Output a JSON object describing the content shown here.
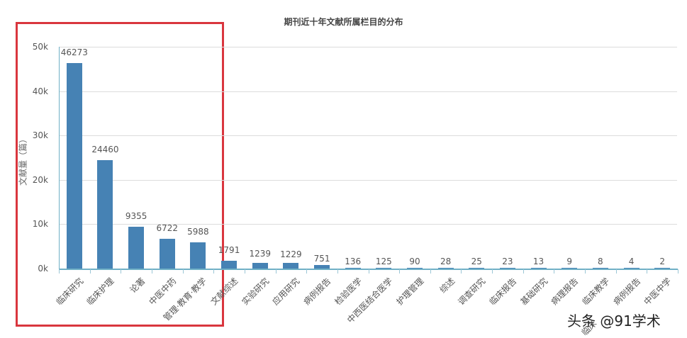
{
  "chart_data": {
    "type": "bar",
    "title": "期刊近十年文献所属栏目的分布",
    "xlabel": "",
    "ylabel": "文献量（篇）",
    "ylim": [
      0,
      50000
    ],
    "yticks": [
      "0k",
      "10k",
      "20k",
      "30k",
      "40k",
      "50k"
    ],
    "grid": true,
    "legend": null,
    "categories": [
      "临床研究",
      "临床护理",
      "论著",
      "中医中药",
      "管理·教育·教学",
      "文献综述",
      "实验研究",
      "应用研究",
      "病例报告",
      "检验医学",
      "中西医结合医学",
      "护理管理",
      "综述",
      "调查研究",
      "临床报告",
      "基础研究",
      "病理报告",
      "临床教学",
      "病例报告",
      "中医中学"
    ],
    "values": [
      46273,
      24460,
      9355,
      6722,
      5988,
      1791,
      1239,
      1229,
      751,
      136,
      125,
      90,
      28,
      25,
      23,
      13,
      9,
      8,
      4,
      2
    ],
    "bar_color": "#4682b4",
    "annotations": {
      "highlight_box": {
        "color": "#d9363e",
        "covers_categories": [
          "临床研究",
          "临床护理",
          "论著",
          "中医中药",
          "管理·教育·教学"
        ]
      },
      "overlapping_label_fragment": "临床"
    }
  },
  "watermark": "头条 @91学术",
  "extra_label": "临床"
}
